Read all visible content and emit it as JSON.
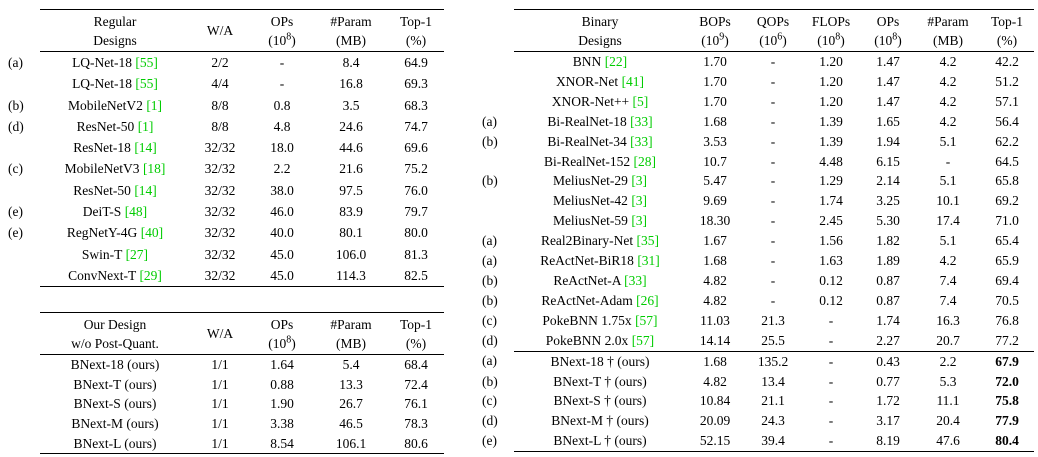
{
  "citation_color": "#00cc00",
  "tables": [
    {
      "id": "regular-designs",
      "headers": [
        {
          "lines": [
            "Regular",
            "Designs"
          ]
        },
        {
          "lines": [
            "W/A"
          ]
        },
        {
          "lines": [
            "OPs",
            "(10^8)"
          ]
        },
        {
          "lines": [
            "#Param",
            "(MB)"
          ]
        },
        {
          "lines": [
            "Top-1",
            "(%)"
          ]
        }
      ],
      "rows": [
        {
          "label": "(a)",
          "name": "LQ-Net-18",
          "cite": "[55]",
          "values": [
            "2/2",
            "-",
            "8.4",
            "64.9"
          ]
        },
        {
          "label": "",
          "name": "LQ-Net-18",
          "cite": "[55]",
          "values": [
            "4/4",
            "-",
            "16.8",
            "69.3"
          ]
        },
        {
          "label": "(b)",
          "name": "MobileNetV2",
          "cite": "[1]",
          "values": [
            "8/8",
            "0.8",
            "3.5",
            "68.3"
          ]
        },
        {
          "label": "(d)",
          "name": "ResNet-50",
          "cite": "[1]",
          "values": [
            "8/8",
            "4.8",
            "24.6",
            "74.7"
          ]
        },
        {
          "label": "",
          "name": "ResNet-18",
          "cite": "[14]",
          "values": [
            "32/32",
            "18.0",
            "44.6",
            "69.6"
          ]
        },
        {
          "label": "(c)",
          "name": "MobileNetV3",
          "cite": "[18]",
          "values": [
            "32/32",
            "2.2",
            "21.6",
            "75.2"
          ]
        },
        {
          "label": "",
          "name": "ResNet-50",
          "cite": "[14]",
          "values": [
            "32/32",
            "38.0",
            "97.5",
            "76.0"
          ]
        },
        {
          "label": "(e)",
          "name": "DeiT-S",
          "cite": "[48]",
          "values": [
            "32/32",
            "46.0",
            "83.9",
            "79.7"
          ]
        },
        {
          "label": "(e)",
          "name": "RegNetY-4G",
          "cite": "[40]",
          "values": [
            "32/32",
            "40.0",
            "80.1",
            "80.0"
          ]
        },
        {
          "label": "",
          "name": "Swin-T",
          "cite": "[27]",
          "values": [
            "32/32",
            "45.0",
            "106.0",
            "81.3"
          ]
        },
        {
          "label": "",
          "name": "ConvNext-T",
          "cite": "[29]",
          "values": [
            "32/32",
            "45.0",
            "114.3",
            "82.5"
          ]
        }
      ]
    },
    {
      "id": "our-design",
      "headers": [
        {
          "lines": [
            "Our Design",
            "w/o Post-Quant."
          ]
        },
        {
          "lines": [
            "W/A"
          ]
        },
        {
          "lines": [
            "OPs",
            "(10^8)"
          ]
        },
        {
          "lines": [
            "#Param",
            "(MB)"
          ]
        },
        {
          "lines": [
            "Top-1",
            "(%)"
          ]
        }
      ],
      "rows": [
        {
          "label": "",
          "name": "BNext-18 (ours)",
          "values": [
            "1/1",
            "1.64",
            "5.4",
            "68.4"
          ]
        },
        {
          "label": "",
          "name": "BNext-T (ours)",
          "values": [
            "1/1",
            "0.88",
            "13.3",
            "72.4"
          ]
        },
        {
          "label": "",
          "name": "BNext-S (ours)",
          "values": [
            "1/1",
            "1.90",
            "26.7",
            "76.1"
          ]
        },
        {
          "label": "",
          "name": "BNext-M (ours)",
          "values": [
            "1/1",
            "3.38",
            "46.5",
            "78.3"
          ]
        },
        {
          "label": "",
          "name": "BNext-L (ours)",
          "values": [
            "1/1",
            "8.54",
            "106.1",
            "80.6"
          ]
        }
      ]
    },
    {
      "id": "binary-designs",
      "headers": [
        {
          "lines": [
            "Binary",
            "Designs"
          ]
        },
        {
          "lines": [
            "BOPs",
            "(10^9)"
          ]
        },
        {
          "lines": [
            "QOPs",
            "(10^6)"
          ]
        },
        {
          "lines": [
            "FLOPs",
            "(10^8)"
          ]
        },
        {
          "lines": [
            "OPs",
            "(10^8)"
          ]
        },
        {
          "lines": [
            "#Param",
            "(MB)"
          ]
        },
        {
          "lines": [
            "Top-1",
            "(%)"
          ]
        }
      ],
      "rows": [
        {
          "label": "",
          "name": "BNN",
          "cite": "[22]",
          "values": [
            "1.70",
            "-",
            "1.20",
            "1.47",
            "4.2",
            "42.2"
          ]
        },
        {
          "label": "",
          "name": "XNOR-Net",
          "cite": "[41]",
          "values": [
            "1.70",
            "-",
            "1.20",
            "1.47",
            "4.2",
            "51.2"
          ]
        },
        {
          "label": "",
          "name": "XNOR-Net++",
          "cite": "[5]",
          "values": [
            "1.70",
            "-",
            "1.20",
            "1.47",
            "4.2",
            "57.1"
          ]
        },
        {
          "label": "(a)",
          "name": "Bi-RealNet-18",
          "cite": "[33]",
          "values": [
            "1.68",
            "-",
            "1.39",
            "1.65",
            "4.2",
            "56.4"
          ]
        },
        {
          "label": "(b)",
          "name": "Bi-RealNet-34",
          "cite": "[33]",
          "values": [
            "3.53",
            "-",
            "1.39",
            "1.94",
            "5.1",
            "62.2"
          ]
        },
        {
          "label": "",
          "name": "Bi-RealNet-152",
          "cite": "[28]",
          "values": [
            "10.7",
            "-",
            "4.48",
            "6.15",
            "-",
            "64.5"
          ]
        },
        {
          "label": "(b)",
          "name": "MeliusNet-29",
          "cite": "[3]",
          "values": [
            "5.47",
            "-",
            "1.29",
            "2.14",
            "5.1",
            "65.8"
          ]
        },
        {
          "label": "",
          "name": "MeliusNet-42",
          "cite": "[3]",
          "values": [
            "9.69",
            "-",
            "1.74",
            "3.25",
            "10.1",
            "69.2"
          ]
        },
        {
          "label": "",
          "name": "MeliusNet-59",
          "cite": "[3]",
          "values": [
            "18.30",
            "-",
            "2.45",
            "5.30",
            "17.4",
            "71.0"
          ]
        },
        {
          "label": "(a)",
          "name": "Real2Binary-Net",
          "cite": "[35]",
          "values": [
            "1.67",
            "-",
            "1.56",
            "1.82",
            "5.1",
            "65.4"
          ]
        },
        {
          "label": "(a)",
          "name": "ReActNet-BiR18",
          "cite": "[31]",
          "values": [
            "1.68",
            "-",
            "1.63",
            "1.89",
            "4.2",
            "65.9"
          ]
        },
        {
          "label": "(b)",
          "name": "ReActNet-A",
          "cite": "[33]",
          "values": [
            "4.82",
            "-",
            "0.12",
            "0.87",
            "7.4",
            "69.4"
          ]
        },
        {
          "label": "(b)",
          "name": "ReActNet-Adam",
          "cite": "[26]",
          "values": [
            "4.82",
            "-",
            "0.12",
            "0.87",
            "7.4",
            "70.5"
          ]
        },
        {
          "label": "(c)",
          "name": "PokeBNN 1.75x",
          "cite": "[57]",
          "values": [
            "11.03",
            "21.3",
            "-",
            "1.74",
            "16.3",
            "76.8"
          ]
        },
        {
          "label": "(d)",
          "name": "PokeBNN 2.0x",
          "cite": "[57]",
          "values": [
            "14.14",
            "25.5",
            "-",
            "2.27",
            "20.7",
            "77.2"
          ]
        },
        {
          "label": "(a)",
          "name": "BNext-18 † (ours)",
          "sep": true,
          "bold_last": true,
          "values": [
            "1.68",
            "135.2",
            "-",
            "0.43",
            "2.2",
            "67.9"
          ]
        },
        {
          "label": "(b)",
          "name": "BNext-T † (ours)",
          "bold_last": true,
          "values": [
            "4.82",
            "13.4",
            "-",
            "0.77",
            "5.3",
            "72.0"
          ]
        },
        {
          "label": "(c)",
          "name": "BNext-S † (ours)",
          "bold_last": true,
          "values": [
            "10.84",
            "21.1",
            "-",
            "1.72",
            "11.1",
            "75.8"
          ]
        },
        {
          "label": "(d)",
          "name": "BNext-M † (ours)",
          "bold_last": true,
          "values": [
            "20.09",
            "24.3",
            "-",
            "3.17",
            "20.4",
            "77.9"
          ]
        },
        {
          "label": "(e)",
          "name": "BNext-L † (ours)",
          "bold_last": true,
          "values": [
            "52.15",
            "39.4",
            "-",
            "8.19",
            "47.6",
            "80.4"
          ]
        }
      ]
    }
  ]
}
